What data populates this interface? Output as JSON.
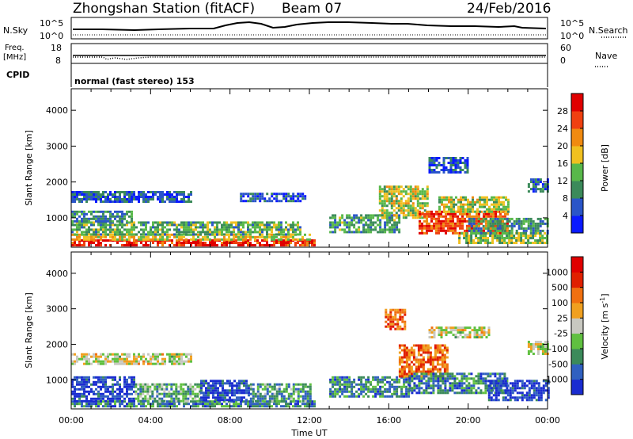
{
  "header": {
    "station": "Zhongshan Station (fitACF)",
    "beam": "Beam 07",
    "date": "24/Feb/2016"
  },
  "top_panels": {
    "nsky_label": "N.Sky",
    "nsky_ticks": [
      "10^5",
      "10^0"
    ],
    "nsearch_label": "N.Search",
    "nsearch_ticks": [
      "10^5",
      "10^0"
    ],
    "freq_label": "Freq.",
    "freq_unit": "[MHz]",
    "freq_ticks": [
      "18",
      "8"
    ],
    "nave_label": "Nave",
    "nave_ticks": [
      "60",
      "0"
    ],
    "cpid_label": "CPID",
    "cpid_text": "normal (fast stereo) 153"
  },
  "chart_data": [
    {
      "type": "heatmap",
      "name": "power",
      "ylabel": "Slant Range [km]",
      "ylim": [
        180,
        4600
      ],
      "yticks": [
        "1000",
        "2000",
        "3000",
        "4000"
      ],
      "xlim": [
        0,
        24
      ],
      "colorbar": {
        "label": "Power [dB]",
        "range": [
          0,
          32
        ],
        "ticks": [
          "4",
          "8",
          "12",
          "16",
          "20",
          "24",
          "28"
        ],
        "colors": [
          "#0a1aff",
          "#2a55c8",
          "#3b8a5a",
          "#58b84a",
          "#f0c020",
          "#f08a10",
          "#f04010",
          "#e00000"
        ]
      },
      "regions": [
        {
          "t0": 0.0,
          "t1": 12.3,
          "r0": 220,
          "r1": 400,
          "level": 0.88
        },
        {
          "t0": 0.0,
          "t1": 12.0,
          "r0": 400,
          "r1": 560,
          "level": 0.55
        },
        {
          "t0": 0.0,
          "t1": 11.5,
          "r0": 560,
          "r1": 900,
          "level": 0.38
        },
        {
          "t0": 0.0,
          "t1": 3.0,
          "r0": 900,
          "r1": 1200,
          "level": 0.3
        },
        {
          "t0": 0.0,
          "t1": 6.0,
          "r0": 1450,
          "r1": 1750,
          "level": 0.2
        },
        {
          "t0": 8.5,
          "t1": 11.8,
          "r0": 1450,
          "r1": 1700,
          "level": 0.2
        },
        {
          "t0": 13.0,
          "t1": 16.5,
          "r0": 600,
          "r1": 1100,
          "level": 0.35
        },
        {
          "t0": 15.5,
          "t1": 18.0,
          "r0": 1000,
          "r1": 1900,
          "level": 0.5
        },
        {
          "t0": 17.5,
          "t1": 22.0,
          "r0": 600,
          "r1": 1200,
          "level": 0.82
        },
        {
          "t0": 18.5,
          "t1": 22.0,
          "r0": 1200,
          "r1": 1600,
          "level": 0.5
        },
        {
          "t0": 19.5,
          "t1": 24.0,
          "r0": 300,
          "r1": 600,
          "level": 0.45
        },
        {
          "t0": 20.0,
          "t1": 24.0,
          "r0": 600,
          "r1": 1000,
          "level": 0.32
        },
        {
          "t0": 23.0,
          "t1": 24.0,
          "r0": 1750,
          "r1": 2100,
          "level": 0.22
        },
        {
          "t0": 18.0,
          "t1": 20.0,
          "r0": 2300,
          "r1": 2700,
          "level": 0.18
        }
      ]
    },
    {
      "type": "heatmap",
      "name": "velocity",
      "ylabel": "Slant Range [km]",
      "xlabel": "Time UT",
      "ylim": [
        180,
        4600
      ],
      "yticks": [
        "1000",
        "2000",
        "3000",
        "4000"
      ],
      "xlim": [
        0,
        24
      ],
      "xticks": [
        "00:00",
        "04:00",
        "08:00",
        "12:00",
        "16:00",
        "20:00",
        "00:00"
      ],
      "colorbar": {
        "label": "Velocity [m s",
        "label_sup": "-1",
        "label_end": "]",
        "ticks": [
          "1000",
          "500",
          "100",
          "25",
          "-25",
          "-100",
          "-500",
          "-1000"
        ],
        "colors": [
          "#1a2cd0",
          "#3060c0",
          "#3b8a5a",
          "#60c040",
          "#c8c8c0",
          "#f0a020",
          "#f07010",
          "#e02000",
          "#e00000"
        ]
      },
      "regions": [
        {
          "t0": 0.0,
          "t1": 12.3,
          "r0": 220,
          "r1": 420,
          "level": 0.25
        },
        {
          "t0": 0.0,
          "t1": 3.2,
          "r0": 420,
          "r1": 1100,
          "level": 0.08
        },
        {
          "t0": 3.2,
          "t1": 6.5,
          "r0": 420,
          "r1": 900,
          "level": 0.35
        },
        {
          "t0": 6.5,
          "t1": 9.0,
          "r0": 420,
          "r1": 1000,
          "level": 0.08
        },
        {
          "t0": 9.0,
          "t1": 12.0,
          "r0": 420,
          "r1": 900,
          "level": 0.3
        },
        {
          "t0": 0.0,
          "t1": 6.0,
          "r0": 1450,
          "r1": 1750,
          "level": 0.5
        },
        {
          "t0": 13.0,
          "t1": 17.0,
          "r0": 500,
          "r1": 1100,
          "level": 0.25
        },
        {
          "t0": 16.5,
          "t1": 19.0,
          "r0": 1100,
          "r1": 2000,
          "level": 0.72
        },
        {
          "t0": 17.0,
          "t1": 22.0,
          "r0": 600,
          "r1": 1200,
          "level": 0.22
        },
        {
          "t0": 21.0,
          "t1": 24.0,
          "r0": 400,
          "r1": 1000,
          "level": 0.08
        },
        {
          "t0": 18.0,
          "t1": 21.0,
          "r0": 2200,
          "r1": 2500,
          "level": 0.5
        },
        {
          "t0": 23.0,
          "t1": 24.0,
          "r0": 1750,
          "r1": 2100,
          "level": 0.5
        },
        {
          "t0": 15.8,
          "t1": 16.8,
          "r0": 2400,
          "r1": 3000,
          "level": 0.75
        }
      ]
    }
  ]
}
